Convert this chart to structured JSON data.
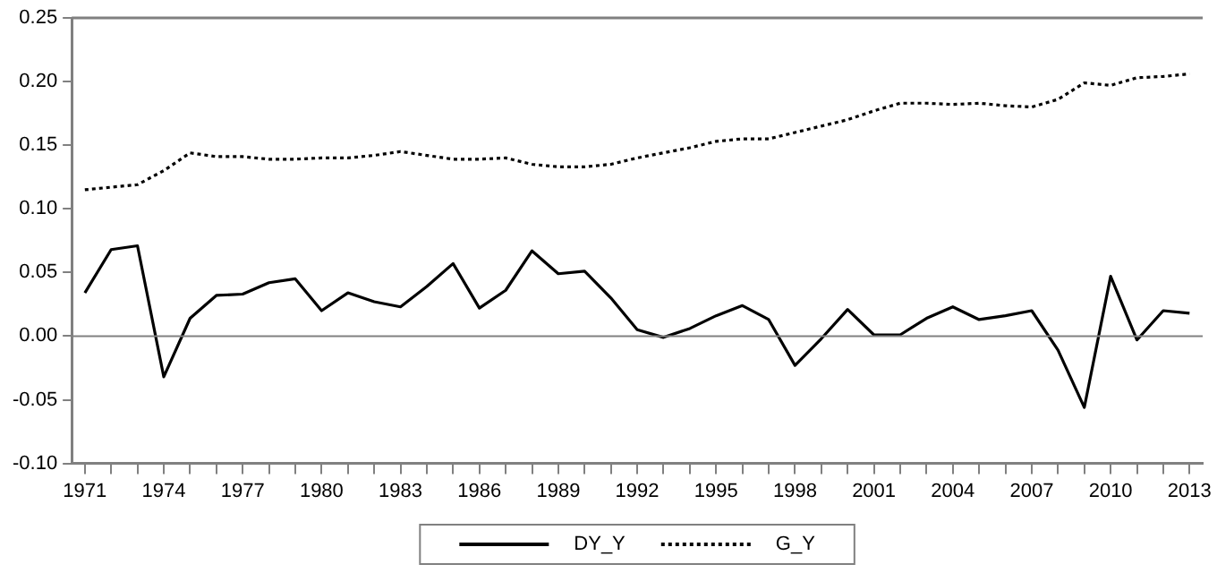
{
  "chart_data": {
    "type": "line",
    "categories": [
      "1971",
      null,
      null,
      "1974",
      null,
      null,
      "1977",
      null,
      null,
      "1980",
      null,
      null,
      "1983",
      null,
      null,
      "1986",
      null,
      null,
      "1989",
      null,
      null,
      "1992",
      null,
      null,
      "1995",
      null,
      null,
      "1998",
      null,
      null,
      "2001",
      null,
      null,
      "2004",
      null,
      null,
      "2007",
      null,
      null,
      "2010",
      null,
      null,
      "2013"
    ],
    "series": [
      {
        "name": "DY_Y",
        "color": "#000000",
        "line_style": "solid",
        "values": [
          0.034,
          0.068,
          0.071,
          -0.032,
          0.014,
          0.032,
          0.033,
          0.042,
          0.045,
          0.02,
          0.034,
          0.027,
          0.023,
          0.039,
          0.057,
          0.022,
          0.036,
          0.067,
          0.049,
          0.051,
          0.03,
          0.005,
          -0.001,
          0.006,
          0.016,
          0.024,
          0.013,
          -0.023,
          -0.002,
          0.021,
          0.001,
          0.001,
          0.014,
          0.023,
          0.013,
          0.016,
          0.02,
          -0.011,
          -0.056,
          0.047,
          -0.003,
          0.02,
          0.018
        ]
      },
      {
        "name": "G_Y",
        "color": "#000000",
        "line_style": "dotted",
        "values": [
          0.115,
          0.117,
          0.119,
          0.13,
          0.144,
          0.141,
          0.141,
          0.139,
          0.139,
          0.14,
          0.14,
          0.142,
          0.145,
          0.142,
          0.139,
          0.139,
          0.14,
          0.135,
          0.133,
          0.133,
          0.135,
          0.14,
          0.144,
          0.148,
          0.153,
          0.155,
          0.155,
          0.16,
          0.165,
          0.17,
          0.177,
          0.183,
          0.183,
          0.182,
          0.183,
          0.181,
          0.18,
          0.186,
          0.199,
          0.197,
          0.203,
          0.204,
          0.206
        ]
      }
    ],
    "ylim": [
      -0.1,
      0.25
    ],
    "yticks": [
      {
        "value": -0.1,
        "label": "-0.10"
      },
      {
        "value": -0.05,
        "label": "-0.05"
      },
      {
        "value": 0,
        "label": "0.00"
      },
      {
        "value": 0.05,
        "label": "0.05"
      },
      {
        "value": 0.1,
        "label": "0.10"
      },
      {
        "value": 0.15,
        "label": "0.15"
      },
      {
        "value": 0.2,
        "label": "0.20"
      },
      {
        "value": 0.25,
        "label": "0.25"
      }
    ],
    "ref_lines": [
      {
        "axis": "y",
        "value": 0,
        "color": "#808080"
      }
    ],
    "grid": false,
    "legend": "bottom",
    "marker": "none"
  }
}
